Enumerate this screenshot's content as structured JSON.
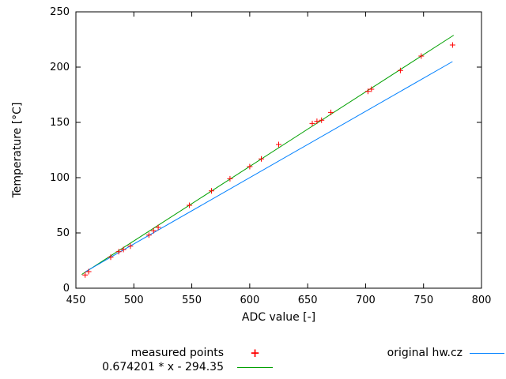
{
  "chart_data": {
    "type": "scatter",
    "title": "",
    "xlabel": "ADC value [-]",
    "ylabel": "Temperature [°C]",
    "xlim": [
      450,
      800
    ],
    "ylim": [
      0,
      250
    ],
    "xticks": [
      450,
      500,
      550,
      600,
      650,
      700,
      750,
      800
    ],
    "yticks": [
      0,
      50,
      100,
      150,
      200,
      250
    ],
    "grid": false,
    "legend_position": "below-plot",
    "frame_color": "#000000",
    "series": [
      {
        "name": "measured points",
        "type": "points",
        "marker": "plus",
        "color": "#ff0000",
        "points": [
          [
            458,
            12
          ],
          [
            461,
            15
          ],
          [
            480,
            28
          ],
          [
            487,
            33
          ],
          [
            491,
            35
          ],
          [
            497,
            38
          ],
          [
            513,
            48
          ],
          [
            517,
            52
          ],
          [
            521,
            55
          ],
          [
            548,
            75
          ],
          [
            567,
            88
          ],
          [
            583,
            99
          ],
          [
            600,
            110
          ],
          [
            610,
            117
          ],
          [
            625,
            130
          ],
          [
            654,
            149
          ],
          [
            658,
            151
          ],
          [
            662,
            152
          ],
          [
            670,
            159
          ],
          [
            702,
            178
          ],
          [
            705,
            180
          ],
          [
            730,
            197
          ],
          [
            748,
            210
          ],
          [
            775,
            220
          ]
        ]
      },
      {
        "name": "0.674201 * x - 294.35",
        "type": "line",
        "color": "#00a000",
        "slope": 0.674201,
        "intercept": -294.35,
        "x_range": [
          455,
          776
        ]
      },
      {
        "name": "original hw.cz",
        "type": "line",
        "color": "#0080ff",
        "slope": 0.6,
        "intercept": -260.0,
        "x_range": [
          458,
          775
        ]
      }
    ]
  }
}
